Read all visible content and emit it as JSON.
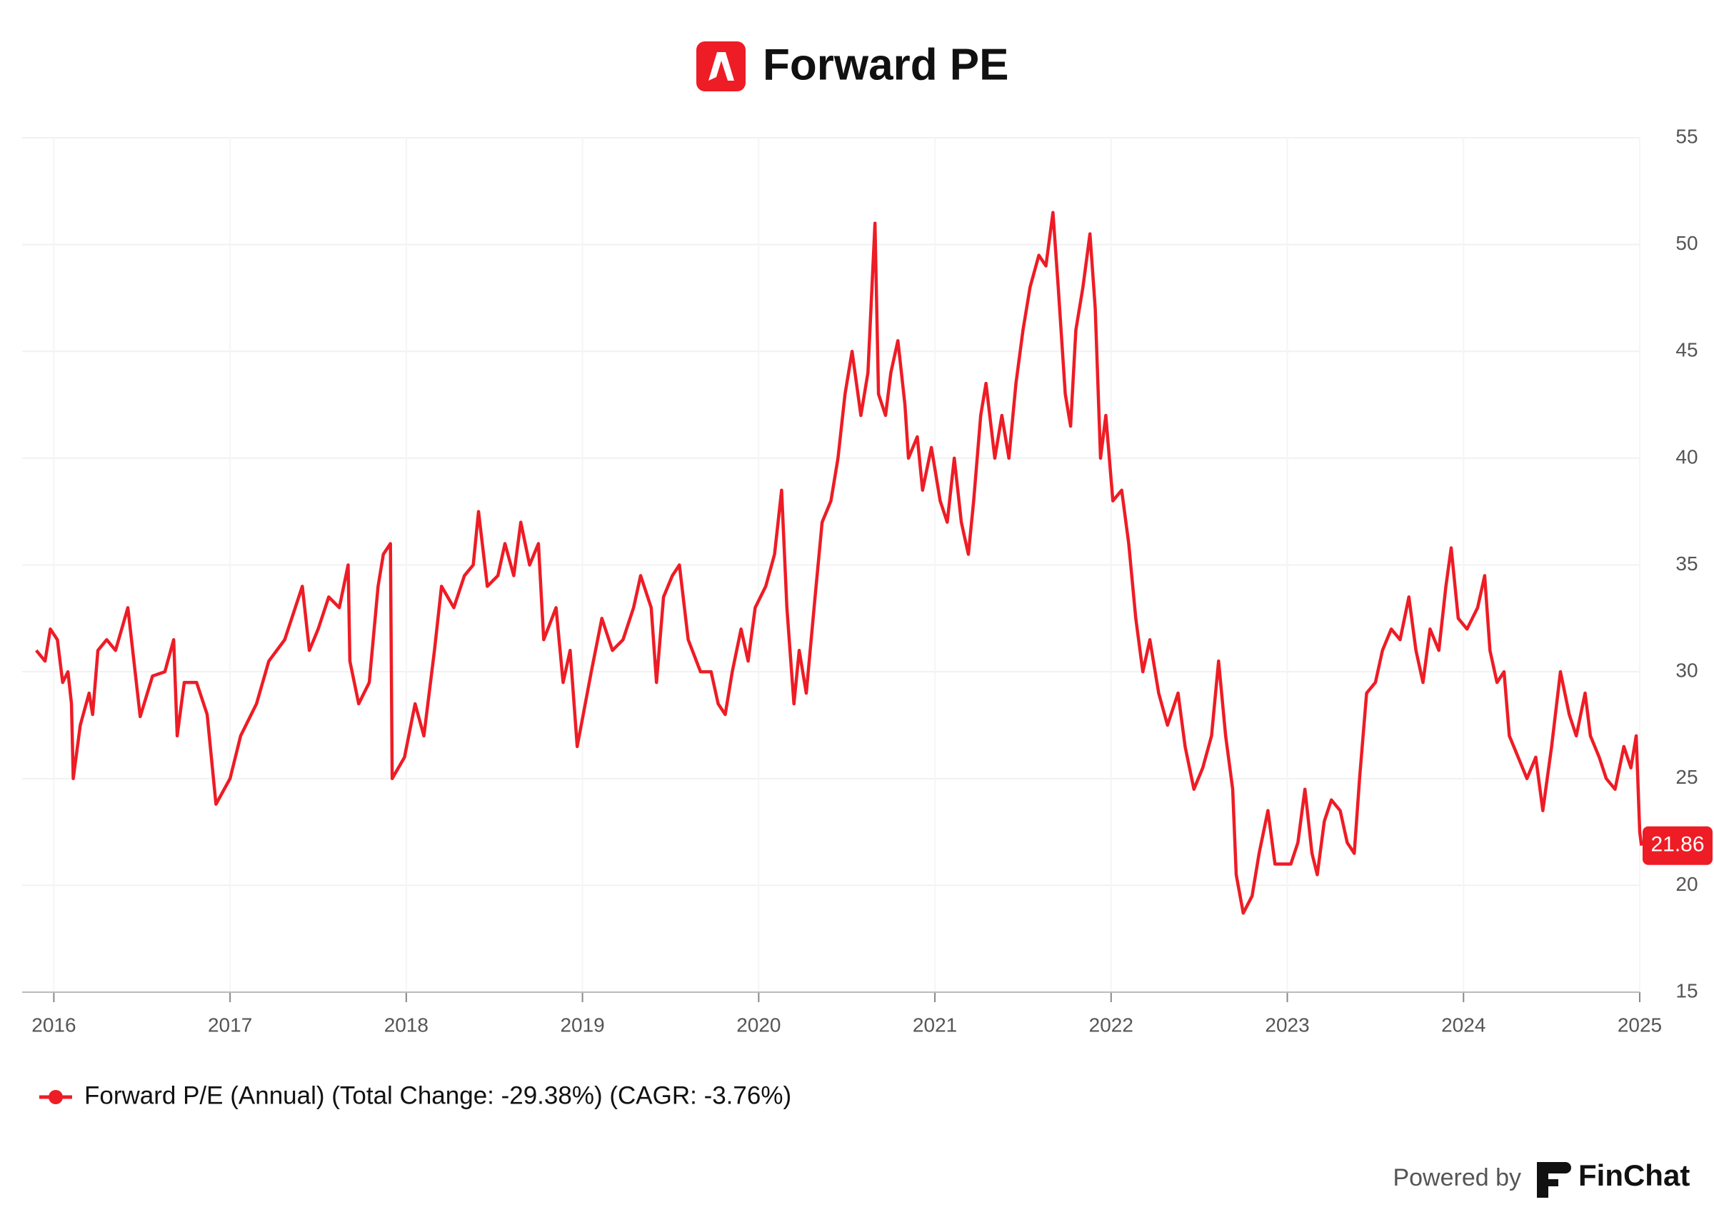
{
  "chart_data": {
    "type": "line",
    "title": "Forward PE",
    "x": [
      2015.9,
      2015.95,
      2015.98,
      2016.02,
      2016.05,
      2016.08,
      2016.1,
      2016.11,
      2016.15,
      2016.2,
      2016.22,
      2016.25,
      2016.3,
      2016.35,
      2016.42,
      2016.49,
      2016.56,
      2016.63,
      2016.68,
      2016.7,
      2016.74,
      2016.81,
      2016.87,
      2016.92,
      2017.0,
      2017.06,
      2017.15,
      2017.22,
      2017.31,
      2017.37,
      2017.41,
      2017.45,
      2017.5,
      2017.56,
      2017.62,
      2017.67,
      2017.68,
      2017.73,
      2017.79,
      2017.84,
      2017.87,
      2017.91,
      2017.92,
      2017.99,
      2018.05,
      2018.1,
      2018.16,
      2018.2,
      2018.27,
      2018.33,
      2018.38,
      2018.41,
      2018.46,
      2018.52,
      2018.56,
      2018.61,
      2018.65,
      2018.7,
      2018.75,
      2018.78,
      2018.85,
      2018.89,
      2018.93,
      2018.97,
      2019.05,
      2019.11,
      2019.17,
      2019.23,
      2019.29,
      2019.33,
      2019.39,
      2019.42,
      2019.46,
      2019.51,
      2019.55,
      2019.6,
      2019.67,
      2019.73,
      2019.77,
      2019.81,
      2019.85,
      2019.9,
      2019.94,
      2019.98,
      2020.04,
      2020.09,
      2020.13,
      2020.16,
      2020.2,
      2020.23,
      2020.27,
      2020.32,
      2020.36,
      2020.41,
      2020.45,
      2020.49,
      2020.53,
      2020.58,
      2020.62,
      2020.66,
      2020.68,
      2020.72,
      2020.75,
      2020.79,
      2020.83,
      2020.85,
      2020.9,
      2020.93,
      2020.98,
      2021.03,
      2021.07,
      2021.11,
      2021.15,
      2021.19,
      2021.22,
      2021.26,
      2021.29,
      2021.34,
      2021.38,
      2021.42,
      2021.46,
      2021.5,
      2021.54,
      2021.59,
      2021.63,
      2021.67,
      2021.7,
      2021.74,
      2021.77,
      2021.8,
      2021.84,
      2021.88,
      2021.91,
      2021.94,
      2021.97,
      2022.01,
      2022.06,
      2022.1,
      2022.14,
      2022.18,
      2022.22,
      2022.27,
      2022.32,
      2022.38,
      2022.42,
      2022.47,
      2022.52,
      2022.57,
      2022.61,
      2022.65,
      2022.69,
      2022.71,
      2022.75,
      2022.8,
      2022.84,
      2022.89,
      2022.93,
      2022.98,
      2023.02,
      2023.06,
      2023.1,
      2023.14,
      2023.17,
      2023.21,
      2023.25,
      2023.3,
      2023.34,
      2023.38,
      2023.41,
      2023.45,
      2023.5,
      2023.54,
      2023.59,
      2023.64,
      2023.69,
      2023.73,
      2023.77,
      2023.81,
      2023.86,
      2023.9,
      2023.93,
      2023.97,
      2024.02,
      2024.08,
      2024.12,
      2024.15,
      2024.19,
      2024.23,
      2024.26,
      2024.31,
      2024.36,
      2024.41,
      2024.45,
      2024.5,
      2024.55,
      2024.6,
      2024.64,
      2024.69,
      2024.72,
      2024.77,
      2024.81,
      2024.86,
      2024.91,
      2024.95,
      2024.98,
      2025.0,
      2025.01
    ],
    "series": [
      {
        "name": "Forward P/E (Annual) (Total Change: -29.38%) (CAGR: -3.76%)",
        "color": "#ee1c25",
        "values": [
          31,
          30.5,
          32,
          31.5,
          29.5,
          30,
          28.5,
          25,
          27.5,
          29,
          28,
          31,
          31.5,
          31,
          33,
          27.9,
          29.8,
          30,
          31.5,
          27,
          29.5,
          29.5,
          28,
          23.8,
          25,
          27,
          28.5,
          30.5,
          31.5,
          33,
          34,
          31,
          32,
          33.5,
          33,
          35,
          30.5,
          28.5,
          29.5,
          34,
          35.5,
          36,
          25,
          26,
          28.5,
          27,
          31,
          34,
          33,
          34.5,
          35,
          37.5,
          34,
          34.5,
          36,
          34.5,
          37,
          35,
          36,
          31.5,
          33,
          29.5,
          31,
          26.5,
          30,
          32.5,
          31,
          31.5,
          33,
          34.5,
          33,
          29.5,
          33.5,
          34.5,
          35,
          31.5,
          30,
          30,
          28.5,
          28,
          30,
          32,
          30.5,
          33,
          34,
          35.5,
          38.5,
          33,
          28.5,
          31,
          29,
          33.5,
          37,
          38,
          40,
          43,
          45,
          42,
          44,
          51,
          43,
          42,
          44,
          45.5,
          42.5,
          40,
          41,
          38.5,
          40.5,
          38,
          37,
          40,
          37,
          35.5,
          38,
          42,
          43.5,
          40,
          42,
          40,
          43.5,
          46,
          48,
          49.5,
          49,
          51.5,
          48,
          43,
          41.5,
          46,
          48,
          50.5,
          47,
          40,
          42,
          38,
          38.5,
          36,
          32.5,
          30,
          31.5,
          29,
          27.5,
          29,
          26.5,
          24.5,
          25.5,
          27,
          30.5,
          27,
          24.5,
          20.5,
          18.7,
          19.5,
          21.5,
          23.5,
          21,
          21,
          21,
          22,
          24.5,
          21.5,
          20.5,
          23,
          24,
          23.5,
          22,
          21.5,
          25,
          29,
          29.5,
          31,
          32,
          31.5,
          33.5,
          31,
          29.5,
          32,
          31,
          34,
          35.8,
          32.5,
          32,
          33,
          34.5,
          31,
          29.5,
          30,
          27,
          26,
          25,
          26,
          23.5,
          26.5,
          30,
          28,
          27,
          29,
          27,
          26,
          25,
          24.5,
          26.5,
          25.5,
          27,
          22.5,
          21.86
        ]
      }
    ],
    "xlim": [
      2015.82,
      2025.0
    ],
    "xticks": [
      2016,
      2017,
      2018,
      2019,
      2020,
      2021,
      2022,
      2023,
      2024,
      2025
    ],
    "ylim": [
      15,
      55
    ],
    "yticks": [
      15,
      20,
      25,
      30,
      35,
      40,
      45,
      50,
      55
    ],
    "grid": true,
    "legend": "bottom-left",
    "footer": {
      "powered_by": "Powered by",
      "brand": "FinChat"
    }
  }
}
